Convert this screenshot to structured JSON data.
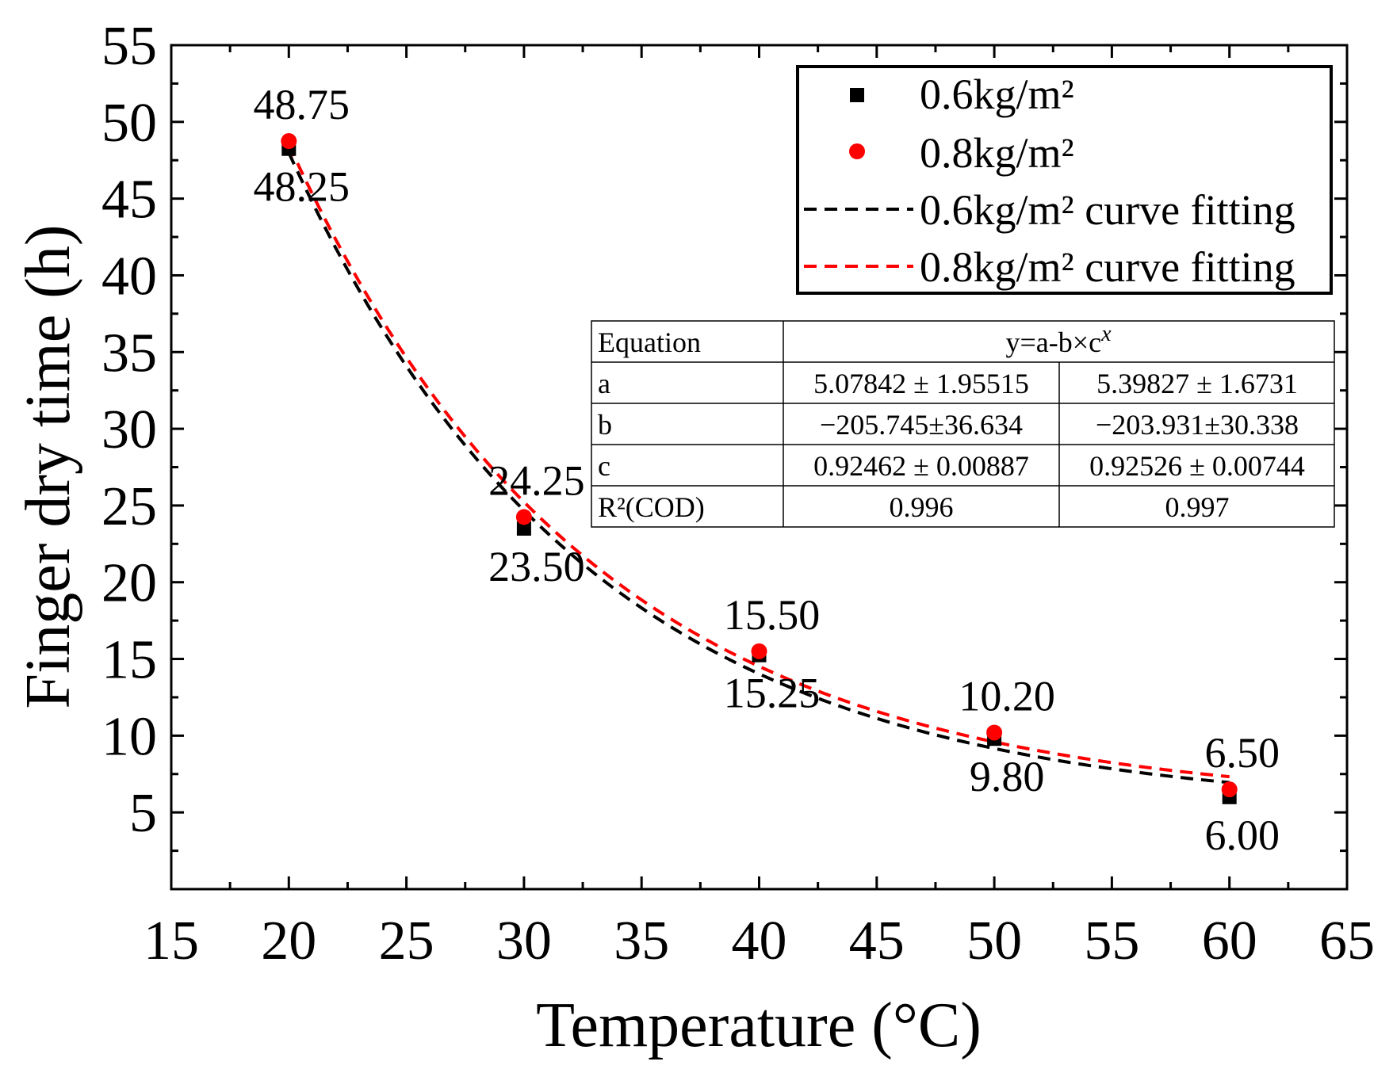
{
  "chart_data": {
    "type": "scatter",
    "xlabel": "Temperature (°C)",
    "ylabel": "Finger dry time (h)",
    "xlim": [
      15,
      65
    ],
    "ylim": [
      0,
      55
    ],
    "x_ticks": [
      15,
      20,
      25,
      30,
      35,
      40,
      45,
      50,
      55,
      60,
      65
    ],
    "y_ticks": [
      5,
      10,
      15,
      20,
      25,
      30,
      35,
      40,
      45,
      50,
      55
    ],
    "series": [
      {
        "name": "0.6kg/m²",
        "marker": "square",
        "color": "#000000",
        "x": [
          20,
          30,
          40,
          50,
          60
        ],
        "y": [
          48.25,
          23.5,
          15.25,
          9.8,
          6.0
        ],
        "labels": [
          "48.25",
          "23.50",
          "15.25",
          "9.80",
          "6.00"
        ]
      },
      {
        "name": "0.8kg/m²",
        "marker": "circle",
        "color": "#ff0000",
        "x": [
          20,
          30,
          40,
          50,
          60
        ],
        "y": [
          48.75,
          24.25,
          15.5,
          10.2,
          6.5
        ],
        "labels": [
          "48.75",
          "24.25",
          "15.50",
          "10.20",
          "6.50"
        ]
      }
    ],
    "fits": [
      {
        "name": "0.6kg/m² curve fitting",
        "color": "#000000",
        "a": 5.07842,
        "b": -205.745,
        "c": 0.92462
      },
      {
        "name": "0.8kg/m² curve fitting",
        "color": "#ff0000",
        "a": 5.39827,
        "b": -203.931,
        "c": 0.92526
      }
    ],
    "legend_position": "top-right",
    "fit_table": {
      "header": [
        "Equation",
        "y=a-b×c",
        "x"
      ],
      "rows": [
        [
          "a",
          "5.07842 ± 1.95515",
          "5.39827 ± 1.6731"
        ],
        [
          "b",
          "−205.745±36.634",
          "−203.931±30.338"
        ],
        [
          "c",
          "0.92462 ± 0.00887",
          "0.92526 ± 0.00744"
        ],
        [
          "R²(COD)",
          "0.996",
          "0.997"
        ]
      ]
    }
  }
}
